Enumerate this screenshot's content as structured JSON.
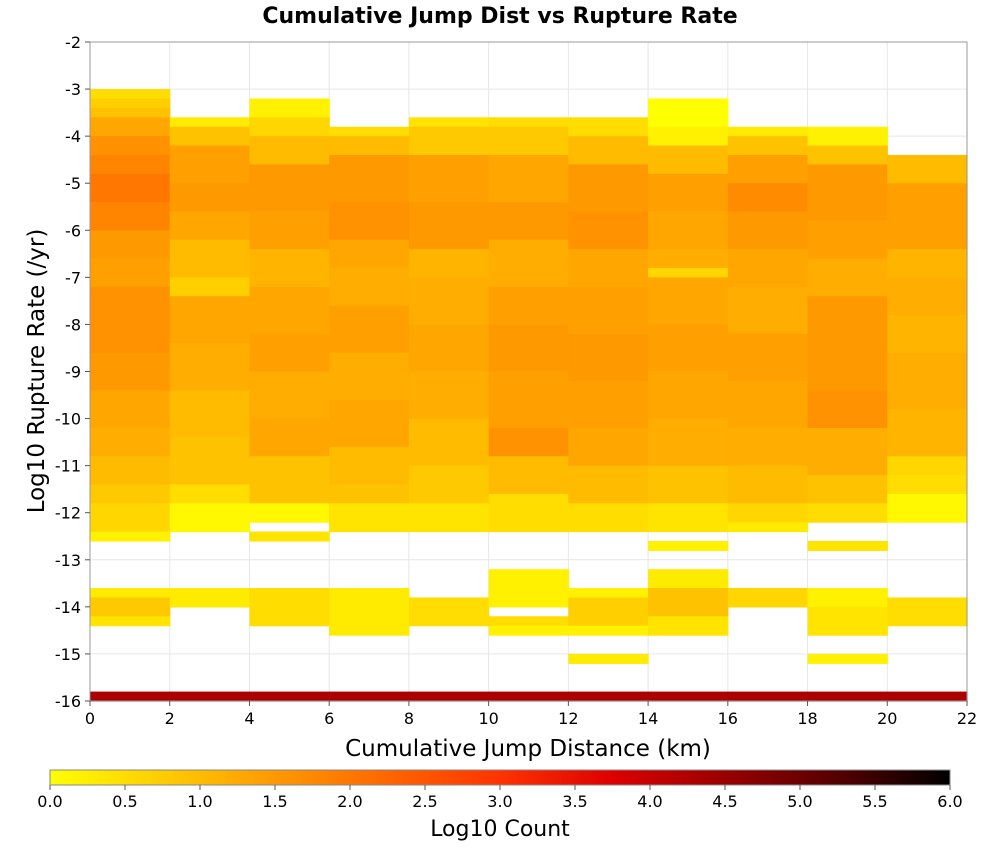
{
  "chart_data": {
    "type": "heatmap",
    "title": "Cumulative Jump Dist vs Rupture Rate",
    "xlabel": "Cumulative Jump Distance (km)",
    "ylabel": "Log10 Rupture Rate (/yr)",
    "xlim": [
      0,
      22
    ],
    "ylim": [
      -16,
      -2
    ],
    "x_ticks": [
      0,
      2,
      4,
      6,
      8,
      10,
      12,
      14,
      16,
      18,
      20,
      22
    ],
    "y_ticks": [
      -2,
      -3,
      -4,
      -5,
      -6,
      -7,
      -8,
      -9,
      -10,
      -11,
      -12,
      -13,
      -14,
      -15,
      -16
    ],
    "x_bin_width": 2,
    "y_bin_height": 0.2,
    "grid": true,
    "colorbar": {
      "label": "Log10 Count",
      "range": [
        0.0,
        6.0
      ],
      "ticks": [
        "0.0",
        "0.5",
        "1.0",
        "1.5",
        "2.0",
        "2.5",
        "3.0",
        "3.5",
        "4.0",
        "4.5",
        "5.0",
        "5.5",
        "6.0"
      ],
      "colors": [
        "#ffff00",
        "#ffcc00",
        "#ff9900",
        "#ff6600",
        "#ff3300",
        "#dd0000",
        "#990000",
        "#550000",
        "#000000"
      ]
    },
    "columns": [
      {
        "x": 0,
        "bands": [
          {
            "y0": -3.2,
            "y1": -3.0,
            "v": 0.5
          },
          {
            "y0": -3.4,
            "y1": -3.2,
            "v": 0.7
          },
          {
            "y0": -3.6,
            "y1": -3.4,
            "v": 0.9
          },
          {
            "y0": -4.0,
            "y1": -3.6,
            "v": 1.3
          },
          {
            "y0": -4.4,
            "y1": -4.0,
            "v": 1.6
          },
          {
            "y0": -4.8,
            "y1": -4.4,
            "v": 1.8
          },
          {
            "y0": -5.4,
            "y1": -4.8,
            "v": 2.0
          },
          {
            "y0": -6.0,
            "y1": -5.4,
            "v": 1.8
          },
          {
            "y0": -6.6,
            "y1": -6.0,
            "v": 1.5
          },
          {
            "y0": -7.2,
            "y1": -6.6,
            "v": 1.4
          },
          {
            "y0": -7.8,
            "y1": -7.2,
            "v": 1.6
          },
          {
            "y0": -8.6,
            "y1": -7.8,
            "v": 1.6
          },
          {
            "y0": -9.4,
            "y1": -8.6,
            "v": 1.5
          },
          {
            "y0": -10.2,
            "y1": -9.4,
            "v": 1.3
          },
          {
            "y0": -10.8,
            "y1": -10.2,
            "v": 1.2
          },
          {
            "y0": -11.4,
            "y1": -10.8,
            "v": 1.0
          },
          {
            "y0": -11.8,
            "y1": -11.4,
            "v": 0.8
          },
          {
            "y0": -12.4,
            "y1": -11.8,
            "v": 0.6
          },
          {
            "y0": -12.6,
            "y1": -12.4,
            "v": 0.2
          },
          {
            "y0": -13.8,
            "y1": -13.6,
            "v": 0.3
          },
          {
            "y0": -14.2,
            "y1": -13.8,
            "v": 0.8
          },
          {
            "y0": -14.4,
            "y1": -14.2,
            "v": 0.4
          },
          {
            "y0": -16.0,
            "y1": -15.8,
            "v": 4.3
          }
        ]
      },
      {
        "x": 2,
        "bands": [
          {
            "y0": -3.8,
            "y1": -3.6,
            "v": 0.3
          },
          {
            "y0": -4.2,
            "y1": -3.8,
            "v": 0.9
          },
          {
            "y0": -5.0,
            "y1": -4.2,
            "v": 1.4
          },
          {
            "y0": -5.6,
            "y1": -5.0,
            "v": 1.5
          },
          {
            "y0": -6.2,
            "y1": -5.6,
            "v": 1.3
          },
          {
            "y0": -7.0,
            "y1": -6.2,
            "v": 1.0
          },
          {
            "y0": -7.4,
            "y1": -7.0,
            "v": 0.7
          },
          {
            "y0": -8.4,
            "y1": -7.4,
            "v": 1.3
          },
          {
            "y0": -9.4,
            "y1": -8.4,
            "v": 1.2
          },
          {
            "y0": -10.4,
            "y1": -9.4,
            "v": 1.0
          },
          {
            "y0": -11.4,
            "y1": -10.4,
            "v": 0.9
          },
          {
            "y0": -11.8,
            "y1": -11.4,
            "v": 0.5
          },
          {
            "y0": -12.4,
            "y1": -11.8,
            "v": 0.1
          },
          {
            "y0": -14.0,
            "y1": -13.6,
            "v": 0.3
          },
          {
            "y0": -16.0,
            "y1": -15.8,
            "v": 4.3
          }
        ]
      },
      {
        "x": 4,
        "bands": [
          {
            "y0": -3.6,
            "y1": -3.2,
            "v": 0.2
          },
          {
            "y0": -4.0,
            "y1": -3.6,
            "v": 0.6
          },
          {
            "y0": -4.6,
            "y1": -4.0,
            "v": 1.0
          },
          {
            "y0": -5.6,
            "y1": -4.6,
            "v": 1.5
          },
          {
            "y0": -6.4,
            "y1": -5.6,
            "v": 1.4
          },
          {
            "y0": -7.2,
            "y1": -6.4,
            "v": 1.1
          },
          {
            "y0": -8.2,
            "y1": -7.2,
            "v": 1.3
          },
          {
            "y0": -9.0,
            "y1": -8.2,
            "v": 1.4
          },
          {
            "y0": -10.0,
            "y1": -9.0,
            "v": 1.2
          },
          {
            "y0": -10.8,
            "y1": -10.0,
            "v": 1.3
          },
          {
            "y0": -11.8,
            "y1": -10.8,
            "v": 0.9
          },
          {
            "y0": -12.2,
            "y1": -11.8,
            "v": 0.1
          },
          {
            "y0": -12.6,
            "y1": -12.4,
            "v": 0.4
          },
          {
            "y0": -14.4,
            "y1": -13.6,
            "v": 0.5
          },
          {
            "y0": -16.0,
            "y1": -15.8,
            "v": 4.3
          }
        ]
      },
      {
        "x": 6,
        "bands": [
          {
            "y0": -4.0,
            "y1": -3.8,
            "v": 0.5
          },
          {
            "y0": -4.4,
            "y1": -4.0,
            "v": 1.0
          },
          {
            "y0": -5.4,
            "y1": -4.4,
            "v": 1.5
          },
          {
            "y0": -6.2,
            "y1": -5.4,
            "v": 1.6
          },
          {
            "y0": -6.8,
            "y1": -6.2,
            "v": 1.3
          },
          {
            "y0": -7.6,
            "y1": -6.8,
            "v": 1.2
          },
          {
            "y0": -8.6,
            "y1": -7.6,
            "v": 1.4
          },
          {
            "y0": -9.6,
            "y1": -8.6,
            "v": 1.2
          },
          {
            "y0": -10.6,
            "y1": -9.6,
            "v": 1.3
          },
          {
            "y0": -11.4,
            "y1": -10.6,
            "v": 1.0
          },
          {
            "y0": -11.8,
            "y1": -11.4,
            "v": 0.9
          },
          {
            "y0": -12.4,
            "y1": -11.8,
            "v": 0.4
          },
          {
            "y0": -14.6,
            "y1": -13.6,
            "v": 0.3
          },
          {
            "y0": -16.0,
            "y1": -15.8,
            "v": 4.3
          }
        ]
      },
      {
        "x": 8,
        "bands": [
          {
            "y0": -3.8,
            "y1": -3.6,
            "v": 0.4
          },
          {
            "y0": -4.4,
            "y1": -3.8,
            "v": 0.8
          },
          {
            "y0": -5.4,
            "y1": -4.4,
            "v": 1.4
          },
          {
            "y0": -6.4,
            "y1": -5.4,
            "v": 1.5
          },
          {
            "y0": -7.0,
            "y1": -6.4,
            "v": 1.1
          },
          {
            "y0": -8.0,
            "y1": -7.0,
            "v": 1.2
          },
          {
            "y0": -9.0,
            "y1": -8.0,
            "v": 1.3
          },
          {
            "y0": -10.0,
            "y1": -9.0,
            "v": 1.2
          },
          {
            "y0": -11.0,
            "y1": -10.0,
            "v": 1.0
          },
          {
            "y0": -11.8,
            "y1": -11.0,
            "v": 0.8
          },
          {
            "y0": -12.4,
            "y1": -11.8,
            "v": 0.4
          },
          {
            "y0": -14.4,
            "y1": -13.8,
            "v": 0.5
          },
          {
            "y0": -16.0,
            "y1": -15.8,
            "v": 4.3
          }
        ]
      },
      {
        "x": 10,
        "bands": [
          {
            "y0": -3.8,
            "y1": -3.6,
            "v": 0.5
          },
          {
            "y0": -4.4,
            "y1": -3.8,
            "v": 0.8
          },
          {
            "y0": -5.4,
            "y1": -4.4,
            "v": 1.3
          },
          {
            "y0": -6.2,
            "y1": -5.4,
            "v": 1.5
          },
          {
            "y0": -7.2,
            "y1": -6.2,
            "v": 1.2
          },
          {
            "y0": -8.0,
            "y1": -7.2,
            "v": 1.4
          },
          {
            "y0": -9.0,
            "y1": -8.0,
            "v": 1.5
          },
          {
            "y0": -10.2,
            "y1": -9.0,
            "v": 1.4
          },
          {
            "y0": -10.8,
            "y1": -10.2,
            "v": 1.6
          },
          {
            "y0": -11.6,
            "y1": -10.8,
            "v": 1.0
          },
          {
            "y0": -12.4,
            "y1": -11.6,
            "v": 0.5
          },
          {
            "y0": -14.0,
            "y1": -13.2,
            "v": 0.2
          },
          {
            "y0": -14.4,
            "y1": -14.2,
            "v": 0.5
          },
          {
            "y0": -14.6,
            "y1": -14.4,
            "v": 0.2
          },
          {
            "y0": -16.0,
            "y1": -15.8,
            "v": 4.3
          }
        ]
      },
      {
        "x": 12,
        "bands": [
          {
            "y0": -4.0,
            "y1": -3.6,
            "v": 0.5
          },
          {
            "y0": -4.6,
            "y1": -4.0,
            "v": 1.0
          },
          {
            "y0": -5.6,
            "y1": -4.6,
            "v": 1.5
          },
          {
            "y0": -6.4,
            "y1": -5.6,
            "v": 1.6
          },
          {
            "y0": -7.2,
            "y1": -6.4,
            "v": 1.3
          },
          {
            "y0": -8.2,
            "y1": -7.2,
            "v": 1.4
          },
          {
            "y0": -9.2,
            "y1": -8.2,
            "v": 1.5
          },
          {
            "y0": -10.2,
            "y1": -9.2,
            "v": 1.4
          },
          {
            "y0": -11.0,
            "y1": -10.2,
            "v": 1.3
          },
          {
            "y0": -11.8,
            "y1": -11.0,
            "v": 1.0
          },
          {
            "y0": -12.4,
            "y1": -11.8,
            "v": 0.5
          },
          {
            "y0": -13.8,
            "y1": -13.6,
            "v": 0.2
          },
          {
            "y0": -14.4,
            "y1": -13.8,
            "v": 0.7
          },
          {
            "y0": -14.6,
            "y1": -14.4,
            "v": 0.2
          },
          {
            "y0": -15.2,
            "y1": -15.0,
            "v": 0.3
          },
          {
            "y0": -16.0,
            "y1": -15.8,
            "v": 4.3
          }
        ]
      },
      {
        "x": 14,
        "bands": [
          {
            "y0": -3.8,
            "y1": -3.2,
            "v": 0.0
          },
          {
            "y0": -4.2,
            "y1": -3.8,
            "v": 0.2
          },
          {
            "y0": -4.8,
            "y1": -4.2,
            "v": 1.0
          },
          {
            "y0": -5.6,
            "y1": -4.8,
            "v": 1.4
          },
          {
            "y0": -6.4,
            "y1": -5.6,
            "v": 1.3
          },
          {
            "y0": -6.8,
            "y1": -6.4,
            "v": 1.2
          },
          {
            "y0": -7.0,
            "y1": -6.8,
            "v": 0.6
          },
          {
            "y0": -8.0,
            "y1": -7.0,
            "v": 1.3
          },
          {
            "y0": -9.0,
            "y1": -8.0,
            "v": 1.4
          },
          {
            "y0": -10.0,
            "y1": -9.0,
            "v": 1.3
          },
          {
            "y0": -11.0,
            "y1": -10.0,
            "v": 1.2
          },
          {
            "y0": -11.8,
            "y1": -11.0,
            "v": 0.9
          },
          {
            "y0": -12.4,
            "y1": -11.8,
            "v": 0.4
          },
          {
            "y0": -12.8,
            "y1": -12.6,
            "v": 0.2
          },
          {
            "y0": -13.6,
            "y1": -13.2,
            "v": 0.3
          },
          {
            "y0": -14.2,
            "y1": -13.6,
            "v": 0.9
          },
          {
            "y0": -14.6,
            "y1": -14.2,
            "v": 0.4
          },
          {
            "y0": -16.0,
            "y1": -15.8,
            "v": 4.3
          }
        ]
      },
      {
        "x": 16,
        "bands": [
          {
            "y0": -4.0,
            "y1": -3.8,
            "v": 0.3
          },
          {
            "y0": -4.4,
            "y1": -4.0,
            "v": 0.9
          },
          {
            "y0": -5.0,
            "y1": -4.4,
            "v": 1.4
          },
          {
            "y0": -5.6,
            "y1": -5.0,
            "v": 1.7
          },
          {
            "y0": -6.4,
            "y1": -5.6,
            "v": 1.5
          },
          {
            "y0": -7.2,
            "y1": -6.4,
            "v": 1.3
          },
          {
            "y0": -8.2,
            "y1": -7.2,
            "v": 1.2
          },
          {
            "y0": -9.2,
            "y1": -8.2,
            "v": 1.4
          },
          {
            "y0": -10.2,
            "y1": -9.2,
            "v": 1.3
          },
          {
            "y0": -11.0,
            "y1": -10.2,
            "v": 1.2
          },
          {
            "y0": -11.8,
            "y1": -11.0,
            "v": 1.0
          },
          {
            "y0": -12.2,
            "y1": -11.8,
            "v": 0.6
          },
          {
            "y0": -12.4,
            "y1": -12.2,
            "v": 0.3
          },
          {
            "y0": -14.0,
            "y1": -13.6,
            "v": 0.6
          },
          {
            "y0": -16.0,
            "y1": -15.8,
            "v": 4.3
          }
        ]
      },
      {
        "x": 18,
        "bands": [
          {
            "y0": -4.2,
            "y1": -3.8,
            "v": 0.2
          },
          {
            "y0": -4.6,
            "y1": -4.2,
            "v": 0.9
          },
          {
            "y0": -5.8,
            "y1": -4.6,
            "v": 1.5
          },
          {
            "y0": -6.6,
            "y1": -5.8,
            "v": 1.4
          },
          {
            "y0": -7.4,
            "y1": -6.6,
            "v": 1.2
          },
          {
            "y0": -8.4,
            "y1": -7.4,
            "v": 1.5
          },
          {
            "y0": -9.4,
            "y1": -8.4,
            "v": 1.5
          },
          {
            "y0": -10.2,
            "y1": -9.4,
            "v": 1.6
          },
          {
            "y0": -11.2,
            "y1": -10.2,
            "v": 1.2
          },
          {
            "y0": -11.8,
            "y1": -11.2,
            "v": 0.9
          },
          {
            "y0": -12.2,
            "y1": -11.8,
            "v": 0.5
          },
          {
            "y0": -12.8,
            "y1": -12.6,
            "v": 0.4
          },
          {
            "y0": -14.0,
            "y1": -13.6,
            "v": 0.2
          },
          {
            "y0": -14.6,
            "y1": -14.0,
            "v": 0.4
          },
          {
            "y0": -15.2,
            "y1": -15.0,
            "v": 0.2
          },
          {
            "y0": -16.0,
            "y1": -15.8,
            "v": 4.3
          }
        ]
      },
      {
        "x": 20,
        "bands": [
          {
            "y0": -5.0,
            "y1": -4.4,
            "v": 1.0
          },
          {
            "y0": -6.4,
            "y1": -5.0,
            "v": 1.4
          },
          {
            "y0": -7.0,
            "y1": -6.4,
            "v": 1.1
          },
          {
            "y0": -7.8,
            "y1": -7.0,
            "v": 1.2
          },
          {
            "y0": -8.6,
            "y1": -7.8,
            "v": 1.1
          },
          {
            "y0": -9.8,
            "y1": -8.6,
            "v": 1.2
          },
          {
            "y0": -10.8,
            "y1": -9.8,
            "v": 1.1
          },
          {
            "y0": -11.2,
            "y1": -10.8,
            "v": 0.6
          },
          {
            "y0": -11.6,
            "y1": -11.2,
            "v": 0.5
          },
          {
            "y0": -12.2,
            "y1": -11.6,
            "v": 0.1
          },
          {
            "y0": -14.4,
            "y1": -13.8,
            "v": 0.5
          },
          {
            "y0": -16.0,
            "y1": -15.8,
            "v": 4.3
          }
        ]
      }
    ]
  }
}
